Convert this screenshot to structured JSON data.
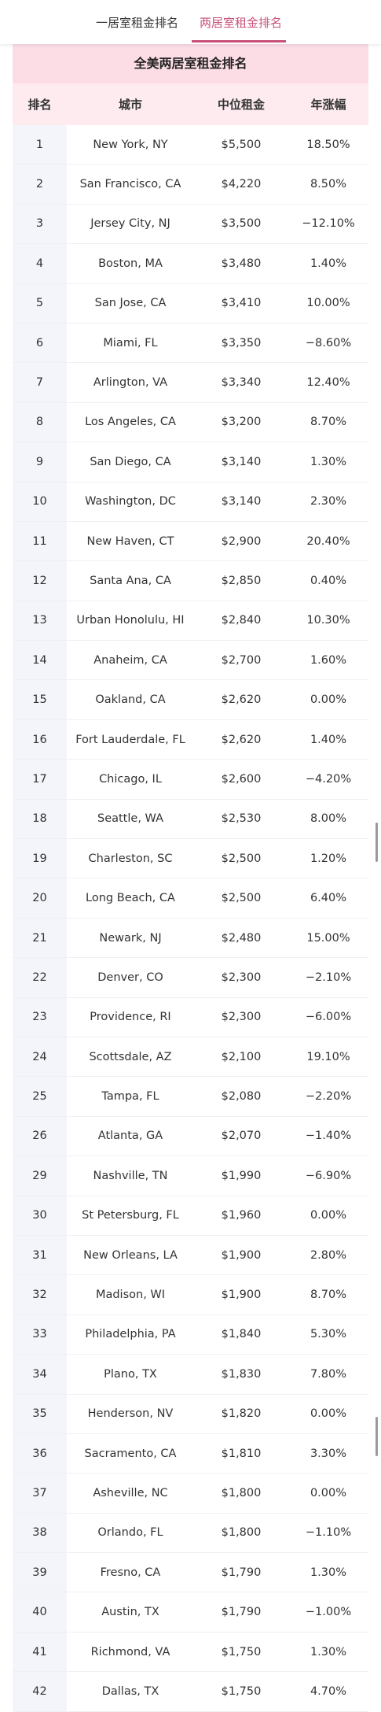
{
  "tabs": [
    "一居室租金排名",
    "两居室租金排名"
  ],
  "table": {
    "title": "全美两居室租金排名",
    "headers": [
      "排名",
      "城市",
      "中位租金",
      "年涨幅"
    ],
    "rows": [
      [
        "1",
        "New York, NY",
        "$5,500",
        "18.50%"
      ],
      [
        "2",
        "San Francisco, CA",
        "$4,220",
        "8.50%"
      ],
      [
        "3",
        "Jersey City, NJ",
        "$3,500",
        "−12.10%"
      ],
      [
        "4",
        "Boston, MA",
        "$3,480",
        "1.40%"
      ],
      [
        "5",
        "San Jose, CA",
        "$3,410",
        "10.00%"
      ],
      [
        "6",
        "Miami, FL",
        "$3,350",
        "−8.60%"
      ],
      [
        "7",
        "Arlington, VA",
        "$3,340",
        "12.40%"
      ],
      [
        "8",
        "Los Angeles, CA",
        "$3,200",
        "8.70%"
      ],
      [
        "9",
        "San Diego, CA",
        "$3,140",
        "1.30%"
      ],
      [
        "10",
        "Washington, DC",
        "$3,140",
        "2.30%"
      ],
      [
        "11",
        "New Haven, CT",
        "$2,900",
        "20.40%"
      ],
      [
        "12",
        "Santa Ana, CA",
        "$2,850",
        "0.40%"
      ],
      [
        "13",
        "Urban Honolulu, HI",
        "$2,840",
        "10.30%"
      ],
      [
        "14",
        "Anaheim, CA",
        "$2,700",
        "1.60%"
      ],
      [
        "15",
        "Oakland, CA",
        "$2,620",
        "0.00%"
      ],
      [
        "16",
        "Fort Lauderdale, FL",
        "$2,620",
        "1.40%"
      ],
      [
        "17",
        "Chicago, IL",
        "$2,600",
        "−4.20%"
      ],
      [
        "18",
        "Seattle, WA",
        "$2,530",
        "8.00%"
      ],
      [
        "19",
        "Charleston, SC",
        "$2,500",
        "1.20%"
      ],
      [
        "20",
        "Long Beach, CA",
        "$2,500",
        "6.40%"
      ],
      [
        "21",
        "Newark, NJ",
        "$2,480",
        "15.00%"
      ],
      [
        "22",
        "Denver, CO",
        "$2,300",
        "−2.10%"
      ],
      [
        "23",
        "Providence, RI",
        "$2,300",
        "−6.00%"
      ],
      [
        "24",
        "Scottsdale, AZ",
        "$2,100",
        "19.10%"
      ],
      [
        "25",
        "Tampa, FL",
        "$2,080",
        "−2.20%"
      ],
      [
        "26",
        "Atlanta, GA",
        "$2,070",
        "−1.40%"
      ],
      [
        "29",
        "Nashville, TN",
        "$1,990",
        "−6.90%"
      ],
      [
        "30",
        "St Petersburg, FL",
        "$1,960",
        "0.00%"
      ],
      [
        "31",
        "New Orleans, LA",
        "$1,900",
        "2.80%"
      ],
      [
        "32",
        "Madison, WI",
        "$1,900",
        "8.70%"
      ],
      [
        "33",
        "Philadelphia, PA",
        "$1,840",
        "5.30%"
      ],
      [
        "34",
        "Plano, TX",
        "$1,830",
        "7.80%"
      ],
      [
        "35",
        "Henderson, NV",
        "$1,820",
        "0.00%"
      ],
      [
        "36",
        "Sacramento, CA",
        "$1,810",
        "3.30%"
      ],
      [
        "37",
        "Asheville, NC",
        "$1,800",
        "0.00%"
      ],
      [
        "38",
        "Orlando, FL",
        "$1,800",
        "−1.10%"
      ],
      [
        "39",
        "Fresno, CA",
        "$1,790",
        "1.30%"
      ],
      [
        "40",
        "Austin, TX",
        "$1,790",
        "−1.00%"
      ],
      [
        "41",
        "Richmond, VA",
        "$1,750",
        "1.30%"
      ],
      [
        "42",
        "Dallas, TX",
        "$1,750",
        "4.70%"
      ]
    ]
  }
}
